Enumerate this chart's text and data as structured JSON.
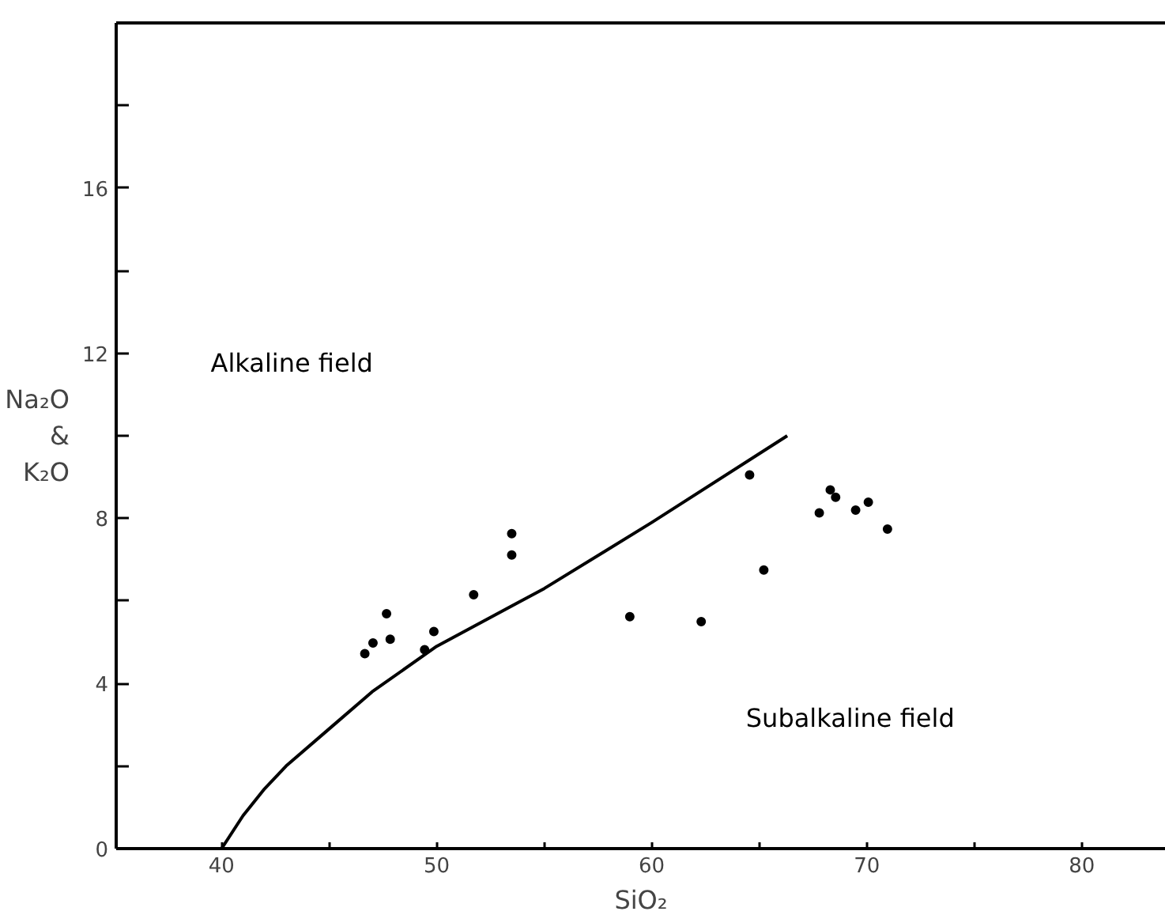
{
  "chart_data": {
    "type": "scatter",
    "xlabel": "SiO₂",
    "ylabel": "Na₂O & K₂O",
    "xlim": [
      35.1,
      83.9
    ],
    "ylim": [
      0,
      20
    ],
    "xticks": [
      40,
      {
        "value": 45,
        "label": null
      },
      50,
      {
        "value": 55,
        "label": null
      },
      60,
      {
        "value": 65,
        "label": null
      },
      70,
      {
        "value": 75,
        "label": null
      },
      80
    ],
    "yticks": [
      0,
      {
        "value": 2,
        "label": null
      },
      4,
      {
        "value": 6,
        "label": null
      },
      8,
      {
        "value": 10,
        "label": null
      },
      12,
      {
        "value": 14,
        "label": null
      },
      16,
      {
        "value": 18,
        "label": null
      }
    ],
    "grid": false,
    "annotations": [
      "Alkaline field",
      "Subalkaline field"
    ],
    "series": [
      {
        "color": "#000000",
        "marker": "circle",
        "x": [
          46.66,
          47.04,
          47.67,
          47.84,
          49.44,
          49.87,
          51.72,
          53.49,
          53.49,
          58.98,
          62.3,
          64.55,
          65.21,
          67.79,
          68.3,
          68.55,
          69.48,
          70.07,
          70.96
        ],
        "values": [
          4.72,
          4.98,
          5.69,
          5.07,
          4.82,
          5.26,
          6.15,
          7.11,
          7.63,
          5.62,
          5.5,
          9.05,
          6.75,
          8.13,
          8.69,
          8.51,
          8.2,
          8.39,
          7.74
        ]
      },
      {
        "type": "line",
        "color": "#000000",
        "line_style": "solid",
        "x": [
          40,
          41,
          42,
          43,
          45,
          47,
          50,
          55,
          60,
          66.3
        ],
        "values": [
          0,
          0.8,
          1.45,
          2.0,
          2.9,
          3.8,
          4.9,
          6.3,
          7.9,
          10.0
        ]
      }
    ]
  }
}
